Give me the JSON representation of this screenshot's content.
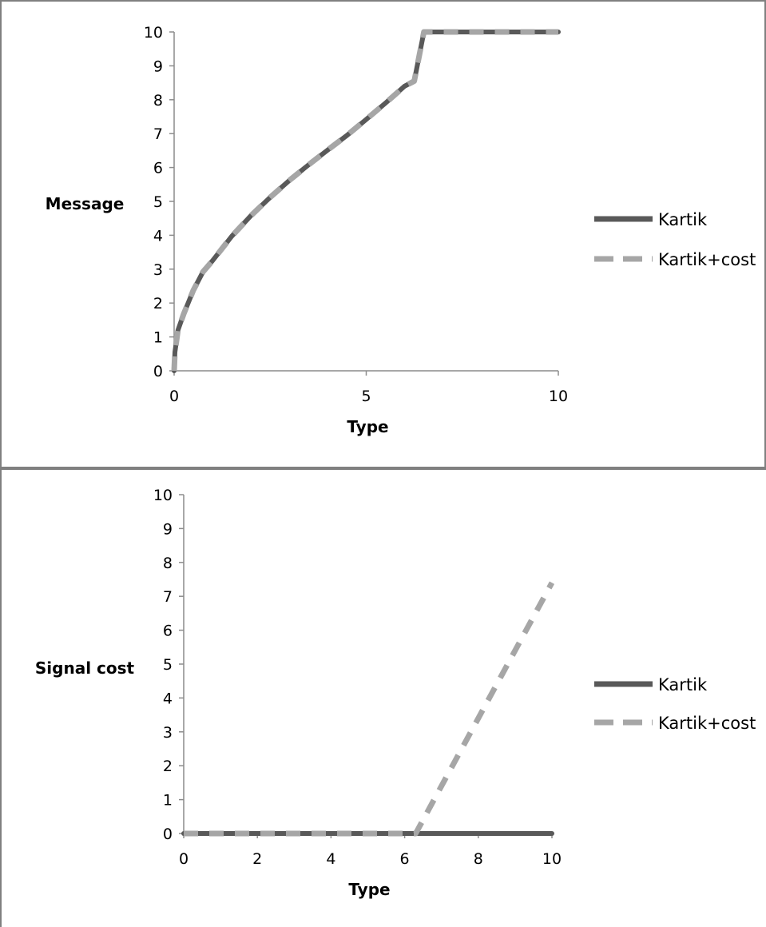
{
  "chart_data": [
    {
      "type": "line",
      "xlabel": "Type",
      "ylabel": "Message",
      "xlim": [
        0,
        10
      ],
      "ylim": [
        0,
        10
      ],
      "xticks": [
        0,
        5,
        10
      ],
      "yticks": [
        0,
        1,
        2,
        3,
        4,
        5,
        6,
        7,
        8,
        9,
        10
      ],
      "grid": false,
      "legend_position": "right",
      "series": [
        {
          "name": "Kartik",
          "color": "#595959",
          "style": "solid",
          "x": [
            0,
            0.02,
            0.1,
            0.25,
            0.5,
            0.75,
            1,
            1.5,
            2,
            2.5,
            3,
            3.5,
            4,
            4.5,
            5,
            5.5,
            6,
            6.25,
            6.5,
            7,
            7.5,
            8,
            8.5,
            9,
            9.5,
            10
          ],
          "y": [
            0,
            0.55,
            1.2,
            1.68,
            2.38,
            2.92,
            3.25,
            3.97,
            4.58,
            5.12,
            5.62,
            6.08,
            6.52,
            6.95,
            7.42,
            7.9,
            8.4,
            8.55,
            10,
            10,
            10,
            10,
            10,
            10,
            10,
            10
          ]
        },
        {
          "name": "Kartik+cost",
          "color": "#a6a6a6",
          "style": "dashed",
          "x": [
            0,
            0.02,
            0.1,
            0.25,
            0.5,
            0.75,
            1,
            1.5,
            2,
            2.5,
            3,
            3.5,
            4,
            4.5,
            5,
            5.5,
            6,
            6.25,
            6.5,
            7,
            7.5,
            8,
            8.5,
            9,
            9.5,
            10
          ],
          "y": [
            0,
            0.55,
            1.2,
            1.68,
            2.38,
            2.92,
            3.25,
            3.97,
            4.58,
            5.12,
            5.62,
            6.08,
            6.52,
            6.95,
            7.42,
            7.9,
            8.4,
            8.55,
            10,
            10,
            10,
            10,
            10,
            10,
            10,
            10
          ]
        }
      ]
    },
    {
      "type": "line",
      "xlabel": "Type",
      "ylabel": "Signal cost",
      "xlim": [
        0,
        10
      ],
      "ylim": [
        0,
        10
      ],
      "xticks": [
        0,
        2,
        4,
        6,
        8,
        10
      ],
      "yticks": [
        0,
        1,
        2,
        3,
        4,
        5,
        6,
        7,
        8,
        9,
        10
      ],
      "grid": false,
      "legend_position": "right",
      "series": [
        {
          "name": "Kartik",
          "color": "#595959",
          "style": "solid",
          "x": [
            0,
            10
          ],
          "y": [
            0,
            0
          ]
        },
        {
          "name": "Kartik+cost",
          "color": "#a6a6a6",
          "style": "dashed",
          "x": [
            0,
            6.3,
            10
          ],
          "y": [
            0,
            0,
            7.4
          ]
        }
      ]
    }
  ]
}
